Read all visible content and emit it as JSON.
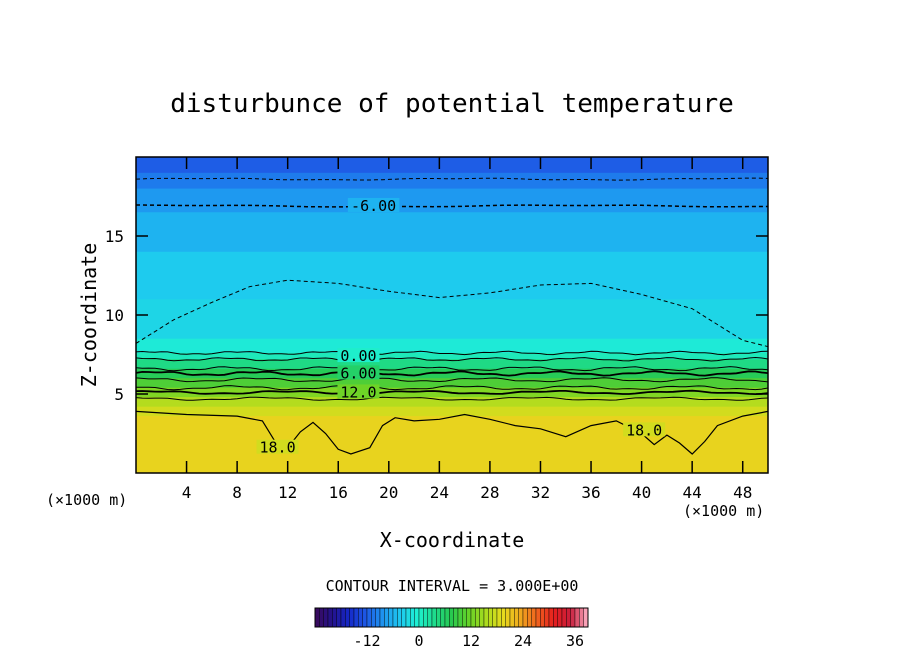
{
  "chart_data": {
    "type": "heatmap",
    "title": "disturbunce of potential temperature",
    "xlabel": "X-coordinate",
    "ylabel": "Z-coordinate",
    "x_unit": "(×1000 m)",
    "z_unit": "(×1000 m)",
    "xlim": [
      0,
      50
    ],
    "ylim": [
      0,
      20
    ],
    "x_ticks": [
      4,
      8,
      12,
      16,
      20,
      24,
      28,
      32,
      36,
      40,
      44,
      48
    ],
    "y_ticks": [
      5,
      10,
      15
    ],
    "contour_interval_text": "CONTOUR INTERVAL = 3.000E+00",
    "contour_interval": 3.0,
    "contour_labels": [
      {
        "text": "-6.00",
        "value": -6,
        "x": 18.8,
        "z": 16.9
      },
      {
        "text": "0.00",
        "value": 0,
        "x": 17.6,
        "z": 7.4
      },
      {
        "text": "6.00",
        "value": 6,
        "x": 17.6,
        "z": 6.3
      },
      {
        "text": "12.0",
        "value": 12,
        "x": 17.6,
        "z": 5.1
      },
      {
        "text": "18.0",
        "value": 18,
        "x": 11.2,
        "z": 1.6
      },
      {
        "text": "18.0",
        "value": 18,
        "x": 40.2,
        "z": 2.7
      }
    ],
    "layers": [
      {
        "z0": 19.0,
        "z1": 20.0,
        "value": -12
      },
      {
        "z0": 18.0,
        "z1": 19.0,
        "value": -10
      },
      {
        "z0": 16.5,
        "z1": 18.0,
        "value": -8
      },
      {
        "z0": 14.0,
        "z1": 16.5,
        "value": -6
      },
      {
        "z0": 11.0,
        "z1": 14.0,
        "value": -4
      },
      {
        "z0": 8.5,
        "z1": 11.0,
        "value": -3
      },
      {
        "z0": 7.6,
        "z1": 8.5,
        "value": -1
      },
      {
        "z0": 7.2,
        "z1": 7.6,
        "value": 1
      },
      {
        "z0": 6.6,
        "z1": 7.2,
        "value": 4
      },
      {
        "z0": 6.0,
        "z1": 6.6,
        "value": 7
      },
      {
        "z0": 5.4,
        "z1": 6.0,
        "value": 10
      },
      {
        "z0": 4.8,
        "z1": 5.4,
        "value": 13
      },
      {
        "z0": 4.2,
        "z1": 4.8,
        "value": 16
      },
      {
        "z0": 3.6,
        "z1": 4.2,
        "value": 18
      },
      {
        "z0": 0.0,
        "z1": 3.6,
        "value": 20
      }
    ],
    "colorbar": {
      "min": -24,
      "max": 39,
      "ticks": [
        -12,
        0,
        12,
        24,
        36
      ],
      "colors": [
        "#3a0a5a",
        "#24128c",
        "#1428c8",
        "#1e5ae6",
        "#1e96f0",
        "#1ec8f0",
        "#1ef0d2",
        "#1edc8c",
        "#28c850",
        "#64d228",
        "#aadc1e",
        "#e6dc1e",
        "#f0aa1e",
        "#f0641e",
        "#e61e1e",
        "#c81e3c",
        "#ffb4c8"
      ]
    },
    "grid": false
  }
}
